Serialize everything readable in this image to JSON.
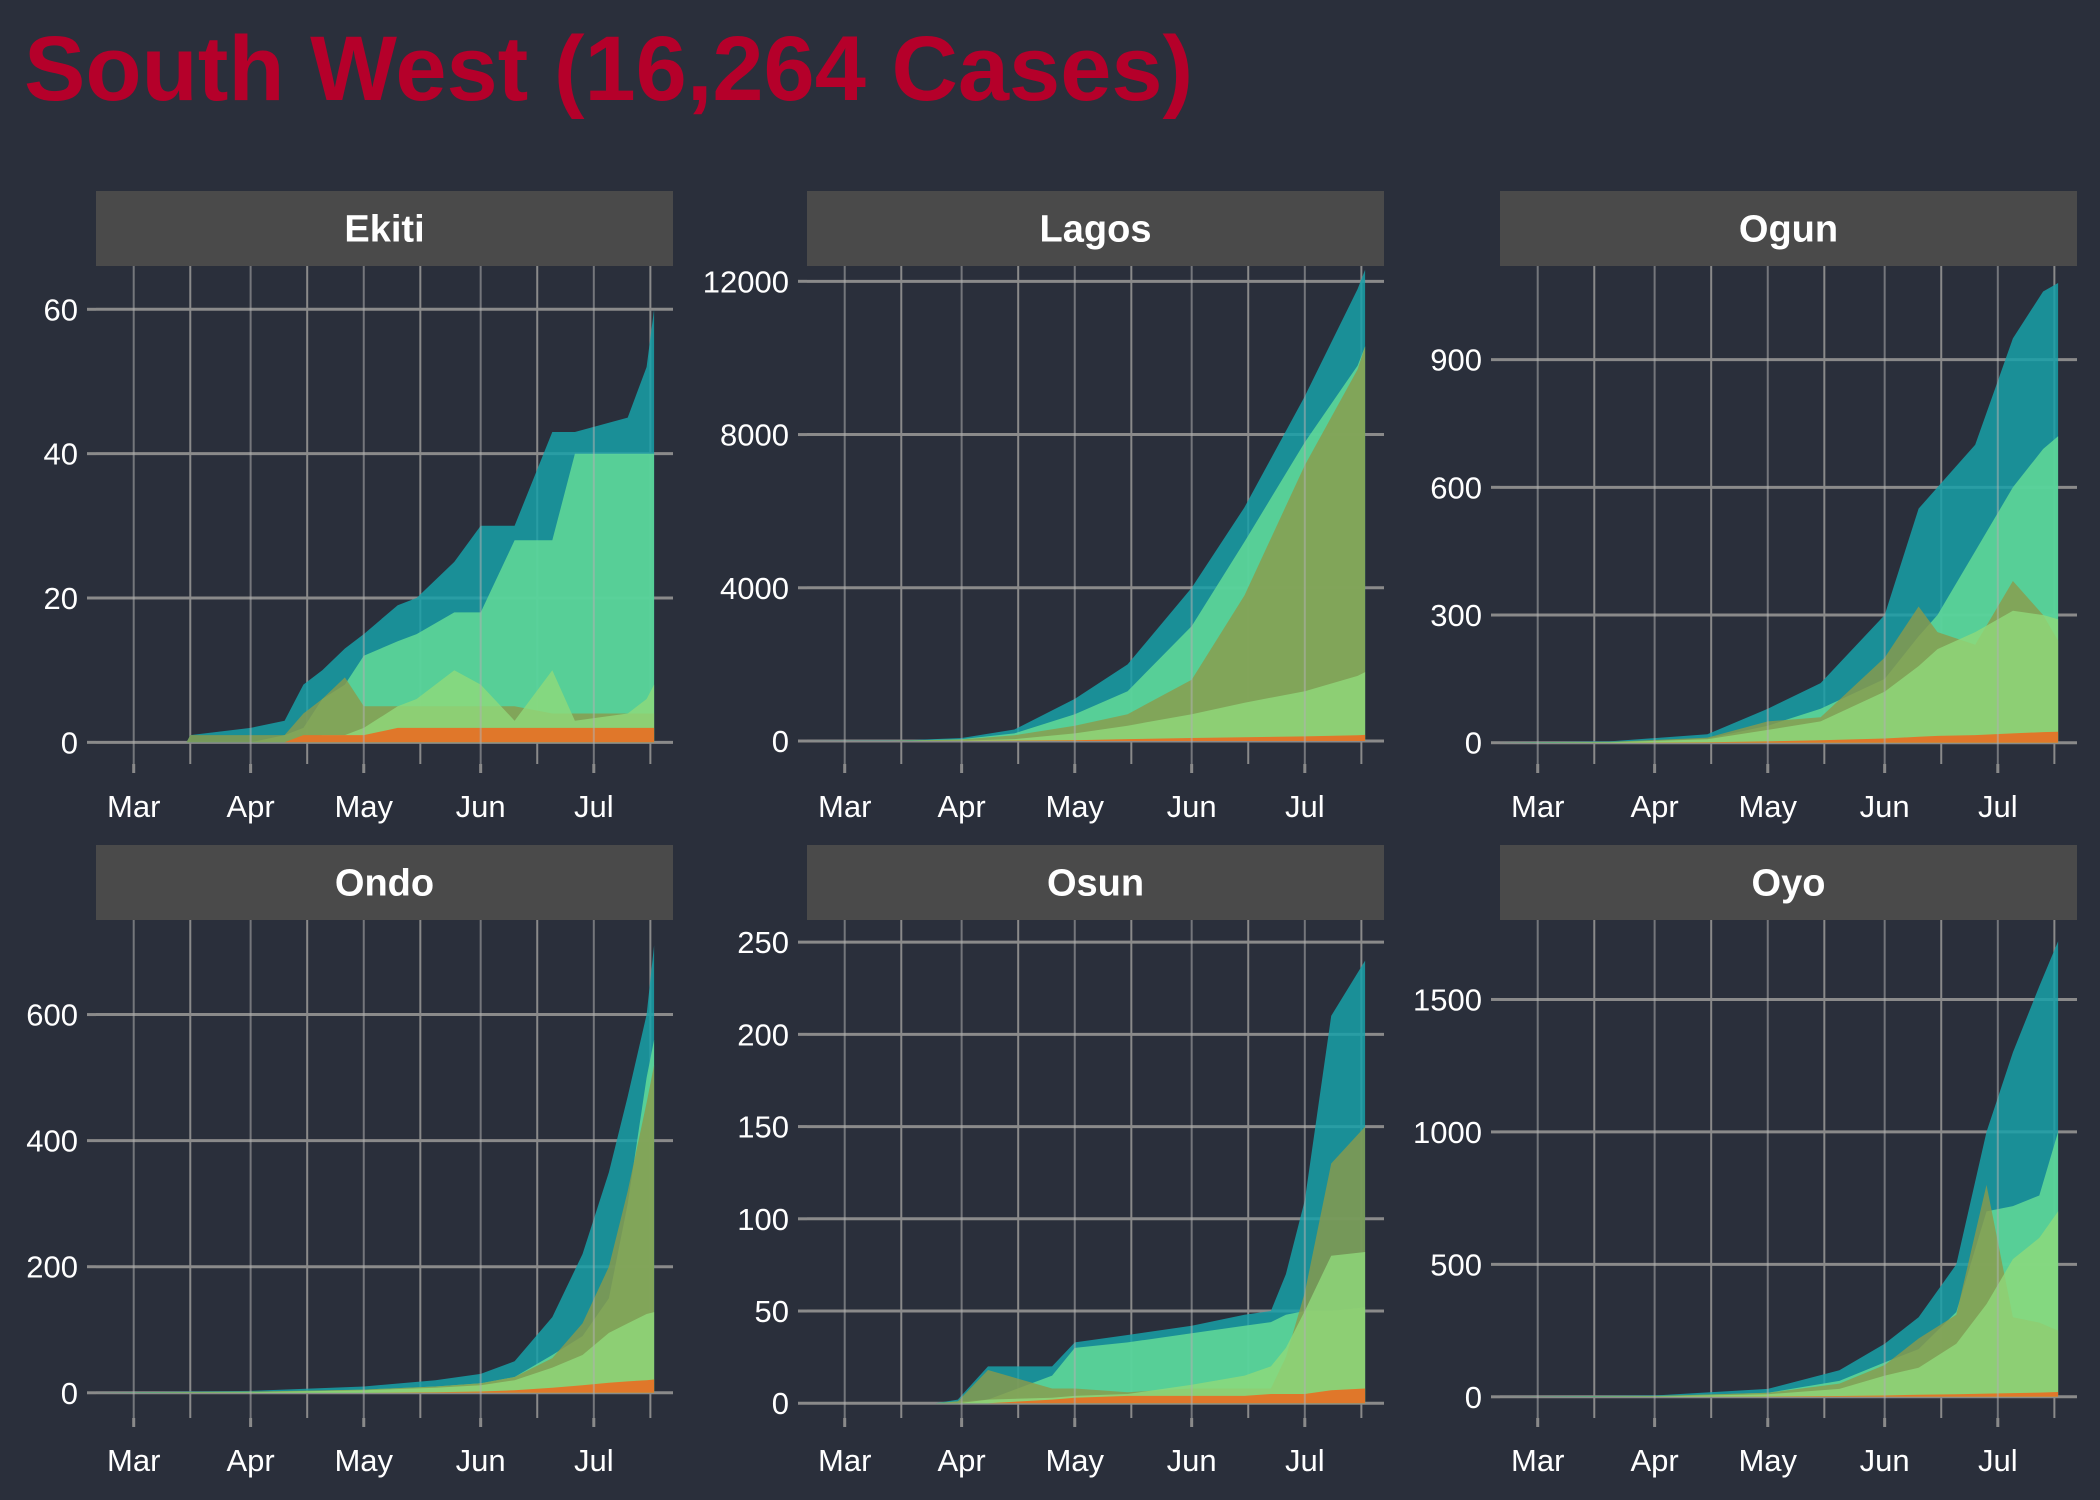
{
  "title": "South West (16,264 Cases)",
  "colors": {
    "background": "#2a2f3b",
    "title": "#b5002a",
    "strip": "#4a4a4a",
    "grid": "#8a8a8a",
    "cases": "#18a0a8",
    "recovered": "#67de97",
    "active": "#8c9a4a",
    "recent": "#90d97a",
    "deaths": "#e0772a"
  },
  "chart_data": {
    "type": "area",
    "title": "South West (16,264 Cases)",
    "x_months": [
      "Mar",
      "Apr",
      "May",
      "Jun",
      "Jul"
    ],
    "x_range": [
      "2020-02-20",
      "2020-07-22"
    ],
    "grid": true,
    "layers": [
      "cases",
      "recovered",
      "active",
      "recent",
      "deaths"
    ],
    "panels": [
      {
        "name": "Ekiti",
        "yticks": [
          0,
          20,
          40,
          60
        ],
        "ylim": [
          -3,
          66
        ],
        "dates": [
          "2020-02-20",
          "2020-03-15",
          "2020-03-16",
          "2020-04-01",
          "2020-04-10",
          "2020-04-15",
          "2020-04-20",
          "2020-04-26",
          "2020-05-01",
          "2020-05-10",
          "2020-05-15",
          "2020-05-25",
          "2020-06-01",
          "2020-06-10",
          "2020-06-20",
          "2020-06-26",
          "2020-07-10",
          "2020-07-15",
          "2020-07-17"
        ],
        "series": [
          {
            "key": "cases",
            "values": [
              0,
              0,
              1,
              2,
              3,
              8,
              10,
              13,
              15,
              19,
              20,
              25,
              30,
              30,
              43,
              43,
              45,
              52,
              60
            ]
          },
          {
            "key": "recovered",
            "values": [
              0,
              0,
              0,
              0,
              1,
              2,
              6,
              8,
              12,
              14,
              15,
              18,
              18,
              28,
              28,
              40,
              40,
              40,
              40
            ]
          },
          {
            "key": "active",
            "values": [
              0,
              0,
              1,
              1,
              1,
              4,
              6,
              9,
              5,
              5,
              5,
              5,
              5,
              5,
              4,
              4,
              4,
              4,
              4
            ]
          },
          {
            "key": "recent",
            "values": [
              0,
              0,
              0,
              0,
              0,
              0,
              1,
              1,
              2,
              5,
              6,
              10,
              8,
              3,
              10,
              3,
              4,
              6,
              8
            ]
          },
          {
            "key": "deaths",
            "values": [
              0,
              0,
              0,
              0,
              0,
              1,
              1,
              1,
              1,
              2,
              2,
              2,
              2,
              2,
              2,
              2,
              2,
              2,
              2
            ]
          }
        ]
      },
      {
        "name": "Lagos",
        "yticks": [
          0,
          4000,
          8000,
          12000
        ],
        "ylim": [
          -600,
          12400
        ],
        "dates": [
          "2020-02-20",
          "2020-03-15",
          "2020-04-01",
          "2020-04-15",
          "2020-05-01",
          "2020-05-15",
          "2020-06-01",
          "2020-06-15",
          "2020-07-01",
          "2020-07-15",
          "2020-07-17"
        ],
        "series": [
          {
            "key": "cases",
            "values": [
              0,
              10,
              80,
              300,
              1100,
              2000,
              4000,
              6100,
              9000,
              11800,
              12300
            ]
          },
          {
            "key": "recovered",
            "values": [
              0,
              5,
              50,
              200,
              700,
              1300,
              3000,
              5200,
              7800,
              9800,
              10300
            ]
          },
          {
            "key": "active",
            "values": [
              0,
              5,
              40,
              150,
              400,
              700,
              1600,
              3800,
              7200,
              9700,
              10300
            ]
          },
          {
            "key": "recent",
            "values": [
              0,
              1,
              10,
              50,
              200,
              400,
              700,
              1000,
              1300,
              1700,
              1800
            ]
          },
          {
            "key": "deaths",
            "values": [
              0,
              0,
              2,
              10,
              20,
              50,
              80,
              100,
              120,
              150,
              160
            ]
          }
        ]
      },
      {
        "name": "Ogun",
        "yticks": [
          0,
          300,
          600,
          900
        ],
        "ylim": [
          -50,
          1120
        ],
        "dates": [
          "2020-02-20",
          "2020-03-20",
          "2020-04-15",
          "2020-05-01",
          "2020-05-15",
          "2020-06-01",
          "2020-06-10",
          "2020-06-15",
          "2020-06-25",
          "2020-07-05",
          "2020-07-13",
          "2020-07-17"
        ],
        "series": [
          {
            "key": "cases",
            "values": [
              0,
              3,
              20,
              80,
              140,
              300,
              550,
              600,
              700,
              950,
              1060,
              1080
            ]
          },
          {
            "key": "recovered",
            "values": [
              0,
              1,
              10,
              40,
              80,
              150,
              250,
              300,
              450,
              600,
              690,
              720
            ]
          },
          {
            "key": "active",
            "values": [
              0,
              2,
              12,
              50,
              60,
              200,
              320,
              260,
              230,
              380,
              300,
              240
            ]
          },
          {
            "key": "recent",
            "values": [
              0,
              1,
              8,
              30,
              50,
              120,
              180,
              220,
              260,
              310,
              300,
              290
            ]
          },
          {
            "key": "deaths",
            "values": [
              0,
              0,
              1,
              3,
              6,
              10,
              14,
              16,
              18,
              22,
              25,
              26
            ]
          }
        ]
      },
      {
        "name": "Ondo",
        "yticks": [
          0,
          200,
          400,
          600
        ],
        "ylim": [
          -40,
          750
        ],
        "dates": [
          "2020-02-20",
          "2020-04-01",
          "2020-05-01",
          "2020-05-20",
          "2020-06-01",
          "2020-06-10",
          "2020-06-20",
          "2020-06-28",
          "2020-07-05",
          "2020-07-10",
          "2020-07-15",
          "2020-07-17"
        ],
        "series": [
          {
            "key": "cases",
            "values": [
              0,
              3,
              10,
              20,
              30,
              50,
              120,
              220,
              350,
              470,
              600,
              710
            ]
          },
          {
            "key": "recovered",
            "values": [
              0,
              1,
              5,
              10,
              15,
              25,
              60,
              90,
              150,
              300,
              500,
              560
            ]
          },
          {
            "key": "active",
            "values": [
              0,
              2,
              5,
              10,
              15,
              25,
              55,
              110,
              200,
              320,
              460,
              520
            ]
          },
          {
            "key": "recent",
            "values": [
              0,
              1,
              4,
              8,
              12,
              20,
              40,
              60,
              95,
              110,
              125,
              128
            ]
          },
          {
            "key": "deaths",
            "values": [
              0,
              0,
              0,
              1,
              2,
              4,
              8,
              12,
              16,
              18,
              20,
              21
            ]
          }
        ]
      },
      {
        "name": "Osun",
        "yticks": [
          0,
          50,
          100,
          150,
          200,
          250
        ],
        "ylim": [
          -8,
          262
        ],
        "dates": [
          "2020-02-20",
          "2020-03-25",
          "2020-03-31",
          "2020-04-08",
          "2020-04-25",
          "2020-05-01",
          "2020-05-15",
          "2020-06-01",
          "2020-06-15",
          "2020-06-22",
          "2020-06-26",
          "2020-07-01",
          "2020-07-08",
          "2020-07-17"
        ],
        "series": [
          {
            "key": "cases",
            "values": [
              0,
              0,
              2,
              20,
              20,
              33,
              37,
              42,
              48,
              50,
              70,
              110,
              210,
              240
            ]
          },
          {
            "key": "recovered",
            "values": [
              0,
              0,
              1,
              2,
              15,
              30,
              33,
              38,
              42,
              44,
              48,
              50,
              50,
              52
            ]
          },
          {
            "key": "active",
            "values": [
              0,
              0,
              1,
              18,
              8,
              8,
              6,
              8,
              8,
              8,
              25,
              60,
              130,
              150
            ]
          },
          {
            "key": "recent",
            "values": [
              0,
              0,
              0,
              2,
              3,
              4,
              5,
              10,
              15,
              20,
              30,
              50,
              80,
              82
            ]
          },
          {
            "key": "deaths",
            "values": [
              0,
              0,
              0,
              0,
              2,
              3,
              4,
              4,
              4,
              5,
              5,
              5,
              7,
              8
            ]
          }
        ]
      },
      {
        "name": "Oyo",
        "yticks": [
          0,
          500,
          1000,
          1500
        ],
        "ylim": [
          -80,
          1800
        ],
        "dates": [
          "2020-02-20",
          "2020-04-01",
          "2020-05-01",
          "2020-05-20",
          "2020-06-01",
          "2020-06-10",
          "2020-06-20",
          "2020-06-28",
          "2020-07-05",
          "2020-07-12",
          "2020-07-17"
        ],
        "series": [
          {
            "key": "cases",
            "values": [
              0,
              5,
              30,
              100,
              200,
              300,
              500,
              1000,
              1300,
              1550,
              1720
            ]
          },
          {
            "key": "recovered",
            "values": [
              0,
              2,
              15,
              60,
              130,
              180,
              320,
              700,
              720,
              760,
              1000
            ]
          },
          {
            "key": "active",
            "values": [
              0,
              3,
              15,
              50,
              120,
              220,
              310,
              800,
              300,
              280,
              250
            ]
          },
          {
            "key": "recent",
            "values": [
              0,
              1,
              10,
              30,
              80,
              110,
              200,
              350,
              520,
              600,
              700
            ]
          },
          {
            "key": "deaths",
            "values": [
              0,
              0,
              1,
              3,
              5,
              8,
              10,
              12,
              14,
              16,
              18
            ]
          }
        ]
      }
    ]
  }
}
